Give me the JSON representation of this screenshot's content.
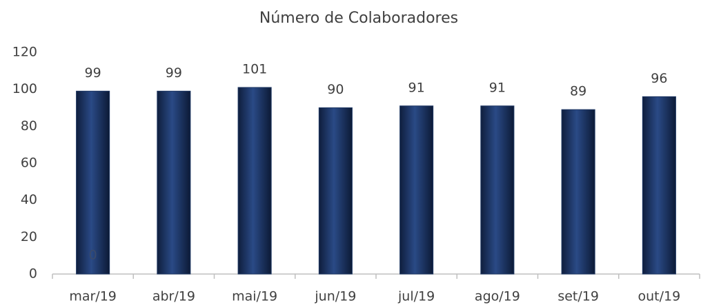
{
  "chart_data": {
    "type": "bar",
    "title": "Número de Colaboradores",
    "categories": [
      "mar/19",
      "abr/19",
      "mai/19",
      "jun/19",
      "jul/19",
      "ago/19",
      "set/19",
      "out/19"
    ],
    "values": [
      99,
      99,
      101,
      90,
      91,
      91,
      89,
      96
    ],
    "color": "#1f3864",
    "ylim": [
      0,
      120
    ],
    "yticks": [
      0,
      20,
      40,
      60,
      80,
      100,
      120
    ],
    "grid": false,
    "annotation": "0"
  }
}
